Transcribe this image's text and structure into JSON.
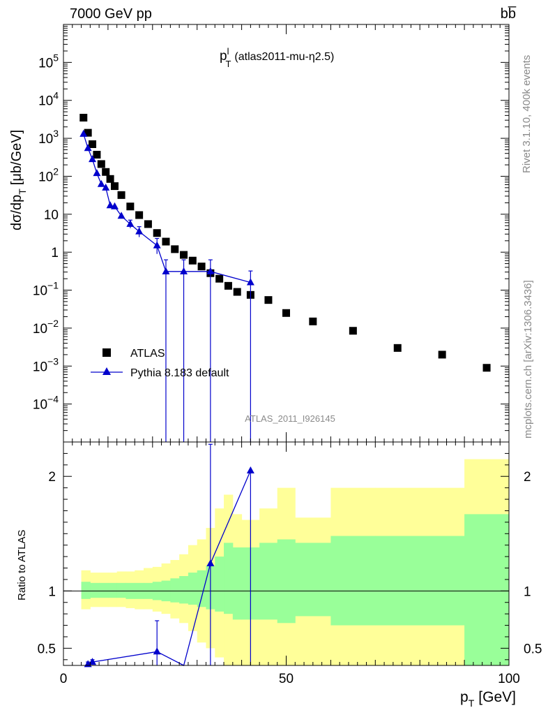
{
  "header": {
    "left": "7000 GeV pp",
    "right": "bb̅"
  },
  "side_texts": {
    "rivet": "Rivet 3.1.10,  400k events",
    "mcplots": "mcplots.cern.ch [arXiv:1306.3436]"
  },
  "watermark": "ATLAS_2011_I926145",
  "chart_data": [
    {
      "type": "scatter",
      "title": "p_T^l (atlas2011-mu-η2.5)",
      "title_main": "p",
      "title_sup": "l",
      "title_sub": "T",
      "title_rest": "(atlas2011-mu-η2.5)",
      "ylabel": "dσ/dp_T [μb/GeV]",
      "ylabel_main": "dσ/dp",
      "ylabel_sub": "T",
      "ylabel_rest": "[μb/GeV]",
      "yscale": "log",
      "xlim": [
        0,
        100
      ],
      "ylim": [
        1e-05,
        1000000.0
      ],
      "yticks": [
        {
          "v": 100000.0,
          "base": "10",
          "exp": "5"
        },
        {
          "v": 10000.0,
          "base": "10",
          "exp": "4"
        },
        {
          "v": 1000.0,
          "base": "10",
          "exp": "3"
        },
        {
          "v": 100.0,
          "base": "10",
          "exp": "2"
        },
        {
          "v": 10,
          "base": "10",
          "exp": ""
        },
        {
          "v": 1,
          "base": "1",
          "exp": ""
        },
        {
          "v": 0.1,
          "base": "10",
          "exp": "−1"
        },
        {
          "v": 0.01,
          "base": "10",
          "exp": "−2"
        },
        {
          "v": 0.001,
          "base": "10",
          "exp": "−3"
        },
        {
          "v": 0.0001,
          "base": "10",
          "exp": "−4"
        }
      ],
      "legend_position": "lower-left",
      "series": [
        {
          "name": "ATLAS",
          "color": "#000000",
          "marker": "square",
          "x": [
            4.5,
            5.5,
            6.5,
            7.5,
            8.5,
            9.5,
            10.5,
            11.5,
            13,
            15,
            17,
            19,
            21,
            23,
            25,
            27,
            29,
            31,
            33,
            35,
            37,
            39,
            42,
            46,
            50,
            56,
            65,
            75,
            85,
            95
          ],
          "y": [
            3500,
            1400,
            700,
            370,
            210,
            130,
            85,
            55,
            32,
            16,
            9.5,
            5.5,
            3.2,
            1.9,
            1.2,
            0.85,
            0.6,
            0.42,
            0.28,
            0.2,
            0.13,
            0.09,
            0.075,
            0.055,
            0.025,
            0.015,
            0.0085,
            0.003,
            0.002,
            0.0009
          ]
        },
        {
          "name": "Pythia 8.183 default",
          "color": "#0000cc",
          "marker": "triangle",
          "x": [
            4.5,
            5.5,
            6.5,
            7.5,
            8.5,
            9.5,
            10.5,
            11.5,
            13,
            15,
            17,
            21,
            23,
            27,
            33,
            42
          ],
          "y": [
            1300,
            550,
            280,
            120,
            62,
            50,
            17,
            16,
            9,
            5.5,
            3.5,
            1.5,
            0.31,
            0.31,
            0.31,
            0.16
          ],
          "yerr_hi": [
            0,
            0,
            0,
            0,
            0,
            0,
            0,
            0,
            0,
            1.5,
            1.2,
            0.8,
            0.32,
            0.32,
            0.32,
            0.16
          ],
          "yerr_lo": [
            0,
            0,
            0,
            0,
            0,
            0,
            0,
            0,
            0,
            1.2,
            1.0,
            0.6,
            0.31,
            0.31,
            0.31,
            0.16
          ]
        }
      ]
    },
    {
      "type": "scatter",
      "ylabel": "Ratio to ATLAS",
      "xlabel": "p_T [GeV]",
      "xlabel_main": "p",
      "xlabel_sub": "T",
      "xlabel_rest": "[GeV]",
      "xlim": [
        0,
        100
      ],
      "ylim": [
        0.35,
        2.3
      ],
      "xticks": [
        0,
        50,
        100
      ],
      "yticks": [
        0.5,
        1,
        2
      ],
      "reference_line": 1,
      "bands": {
        "edges": [
          4,
          6,
          8,
          10,
          12,
          14,
          16,
          18,
          20,
          22,
          24,
          26,
          28,
          30,
          32,
          34,
          36,
          38,
          40,
          44,
          48,
          52,
          60,
          70,
          90,
          100
        ],
        "green_lo": [
          0.93,
          0.94,
          0.94,
          0.94,
          0.94,
          0.93,
          0.93,
          0.93,
          0.92,
          0.91,
          0.9,
          0.89,
          0.88,
          0.86,
          0.84,
          0.82,
          0.8,
          0.75,
          0.75,
          0.75,
          0.72,
          0.78,
          0.7,
          0.7,
          0.35,
          0.35
        ],
        "green_hi": [
          1.08,
          1.07,
          1.07,
          1.07,
          1.07,
          1.07,
          1.07,
          1.07,
          1.08,
          1.09,
          1.11,
          1.13,
          1.16,
          1.18,
          1.22,
          1.3,
          1.42,
          1.38,
          1.38,
          1.42,
          1.45,
          1.42,
          1.48,
          1.48,
          1.67,
          1.67
        ],
        "yellow_lo": [
          0.84,
          0.86,
          0.86,
          0.86,
          0.86,
          0.85,
          0.84,
          0.84,
          0.82,
          0.8,
          0.76,
          0.72,
          0.65,
          0.55,
          0.5,
          0.42,
          0.35,
          0.35,
          0.35,
          0.35,
          0.35,
          0.35,
          0.35,
          0.35,
          0.35,
          0.35
        ],
        "yellow_hi": [
          1.18,
          1.16,
          1.16,
          1.16,
          1.17,
          1.17,
          1.18,
          1.2,
          1.21,
          1.24,
          1.27,
          1.32,
          1.4,
          1.45,
          1.55,
          1.72,
          1.84,
          1.67,
          1.62,
          1.72,
          1.9,
          1.64,
          1.9,
          1.9,
          2.15,
          2.15
        ],
        "green_color": "#99ff99",
        "yellow_color": "#ffff99"
      },
      "series": [
        {
          "name": "Pythia 8.183 default",
          "color": "#0000cc",
          "x": [
            5.5,
            6.5,
            21,
            27,
            33,
            42
          ],
          "y": [
            0.36,
            0.38,
            0.47,
            0.3,
            1.24,
            2.05
          ],
          "yerr_hi": [
            0.02,
            0.02,
            0.27,
            0,
            1.04,
            0
          ],
          "yerr_lo": [
            0.02,
            0.02,
            0.47,
            0.3,
            1.24,
            2.05
          ]
        }
      ]
    }
  ]
}
